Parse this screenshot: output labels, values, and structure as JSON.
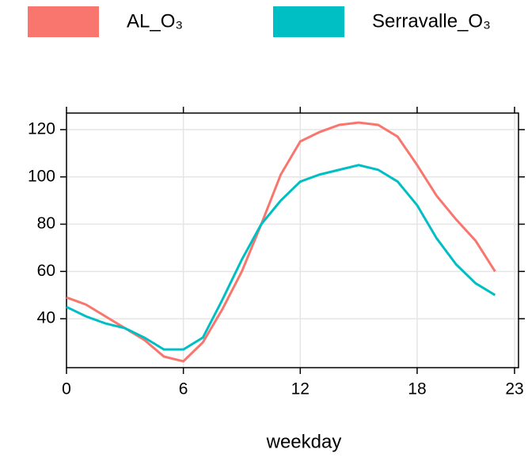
{
  "chart_data": {
    "type": "line",
    "x_label": "weekday",
    "x": [
      0,
      1,
      2,
      3,
      4,
      5,
      6,
      7,
      8,
      9,
      10,
      11,
      12,
      13,
      14,
      15,
      16,
      17,
      18,
      19,
      20,
      21,
      22
    ],
    "series": [
      {
        "name": "AL_O₃",
        "color": "#f8766d",
        "values": [
          49,
          46,
          41,
          36,
          31,
          24,
          22,
          30,
          44,
          60,
          80,
          101,
          115,
          119,
          122,
          123,
          122,
          117,
          105,
          92,
          82,
          73,
          60
        ]
      },
      {
        "name": "Serravalle_O₃",
        "color": "#00bfc4",
        "values": [
          45,
          41,
          38,
          36,
          32,
          27,
          27,
          32,
          48,
          65,
          80,
          90,
          98,
          101,
          103,
          105,
          103,
          98,
          88,
          74,
          63,
          55,
          50
        ]
      }
    ],
    "xlim": [
      0,
      23
    ],
    "xticks": [
      0,
      6,
      12,
      18,
      23
    ],
    "ylim": [
      19.3,
      127
    ],
    "yticks": [
      40,
      60,
      80,
      100,
      120
    ],
    "grid": true
  }
}
